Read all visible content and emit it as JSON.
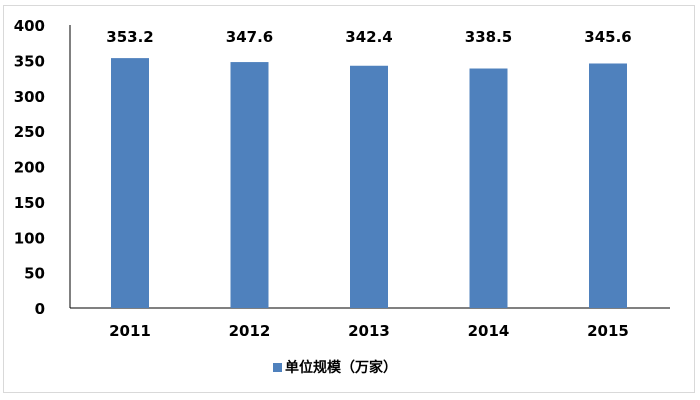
{
  "chart_data": {
    "type": "bar",
    "categories": [
      "2011",
      "2012",
      "2013",
      "2014",
      "2015"
    ],
    "series": [
      {
        "name": "单位规模（万家）",
        "values": [
          353.2,
          347.6,
          342.4,
          338.5,
          345.6
        ],
        "color": "#4f81bd"
      }
    ],
    "data_labels": [
      "353.2",
      "347.6",
      "342.4",
      "338.5",
      "345.6"
    ],
    "title": "",
    "xlabel": "",
    "ylabel": "",
    "ylim": [
      0,
      400
    ],
    "yticks": [
      0,
      50,
      100,
      150,
      200,
      250,
      300,
      350,
      400
    ],
    "grid": false,
    "legend_placement": "bottom"
  }
}
